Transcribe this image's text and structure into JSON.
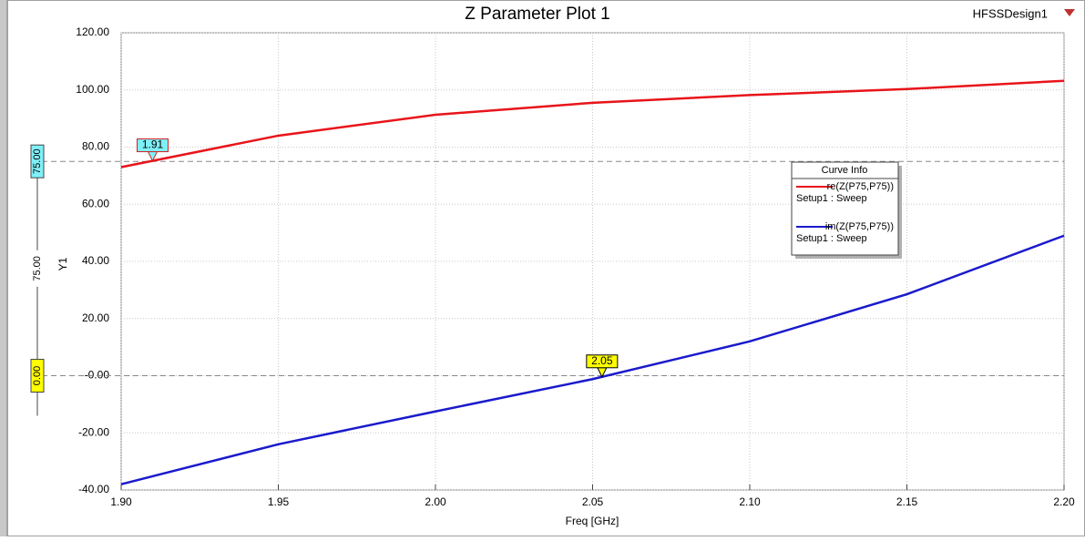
{
  "chart_data": {
    "type": "line",
    "title": "Z Parameter Plot 1",
    "design_name": "HFSSDesign1",
    "xlabel": "Freq [GHz]",
    "ylabel": "Y1",
    "x": [
      1.9,
      1.95,
      2.0,
      2.05,
      2.1,
      2.15,
      2.2
    ],
    "series": [
      {
        "name": "re(Z(P75,P75))",
        "setup": "Setup1 : Sweep",
        "color": "#e8141a",
        "values": [
          73.0,
          84.0,
          91.3,
          95.5,
          98.2,
          100.3,
          103.2
        ]
      },
      {
        "name": "im(Z(P75,P75))",
        "setup": "Setup1 : Sweep",
        "color": "#1a1acc",
        "values": [
          -38.0,
          -24.0,
          -12.5,
          -1.2,
          12.0,
          28.5,
          49.0
        ]
      }
    ],
    "xlim": [
      1.9,
      2.2
    ],
    "ylim": [
      -40,
      120
    ],
    "xticks": [
      {
        "value": 1.9,
        "label": "1.90"
      },
      {
        "value": 1.95,
        "label": "1.95"
      },
      {
        "value": 2.0,
        "label": "2.00"
      },
      {
        "value": 2.05,
        "label": "2.05"
      },
      {
        "value": 2.1,
        "label": "2.10"
      },
      {
        "value": 2.15,
        "label": "2.15"
      },
      {
        "value": 2.2,
        "label": "2.20"
      }
    ],
    "yticks": [
      {
        "value": -40,
        "label": "-40.00"
      },
      {
        "value": -20,
        "label": "-20.00"
      },
      {
        "value": 0,
        "label": "-0.00"
      },
      {
        "value": 20,
        "label": "20.00"
      },
      {
        "value": 40,
        "label": "40.00"
      },
      {
        "value": 60,
        "label": "60.00"
      },
      {
        "value": 80,
        "label": "80.00"
      },
      {
        "value": 100,
        "label": "100.00"
      },
      {
        "value": 120,
        "label": "120.00"
      }
    ],
    "grid": true,
    "legend_title": "Curve Info",
    "x_markers": [
      {
        "x": 1.91,
        "label": "1.91",
        "series": 0,
        "fill": "#80f0f8",
        "border": "#d02020"
      },
      {
        "x": 2.053,
        "label": "2.05",
        "series": 1,
        "fill": "#ffff00",
        "border": "#000000"
      }
    ],
    "y_markers": [
      {
        "value": 75,
        "label": "75.00",
        "fill": "#80f0f8"
      },
      {
        "value": 0,
        "label": "0.00",
        "fill": "#ffff00"
      }
    ],
    "y_marker_delta": {
      "value": 75,
      "label": "75.00"
    }
  }
}
